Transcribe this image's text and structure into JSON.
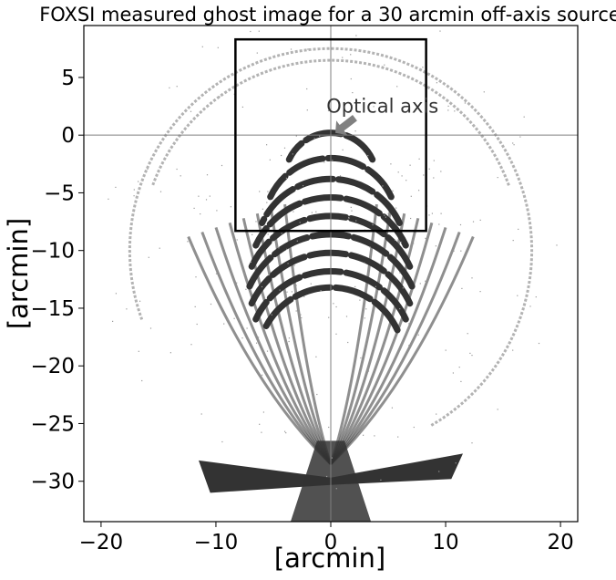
{
  "chart_data": {
    "type": "scatter",
    "title": "FOXSI measured ghost image for a 30 arcmin off-axis source",
    "xlabel": "[arcmin]",
    "ylabel": "[arcmin]",
    "xlim": [
      -21.5,
      21.5
    ],
    "ylim": [
      -33.5,
      9.5
    ],
    "x_ticks": [
      -20,
      -10,
      0,
      10,
      20
    ],
    "y_ticks": [
      5,
      0,
      -5,
      -10,
      -15,
      -20,
      -25,
      -30
    ],
    "x_tick_labels": [
      "−20",
      "−10",
      "0",
      "10",
      "20"
    ],
    "y_tick_labels": [
      "5",
      "0",
      "−5",
      "−10",
      "−15",
      "−20",
      "−25",
      "−30"
    ],
    "crosshair": {
      "x": 0,
      "y": 0
    },
    "box": {
      "x": [
        -8.3,
        8.3
      ],
      "y": [
        -8.3,
        8.3
      ]
    },
    "annotation": {
      "text": "Optical axis",
      "text_x": 4.5,
      "text_y": 2.5,
      "arrow_from": [
        2.1,
        1.5
      ],
      "arrow_to": [
        0.4,
        0.2
      ]
    },
    "ring_center": [
      0,
      -10
    ],
    "outer_rings": [
      {
        "r": 16.5,
        "start": 20,
        "end": 160
      },
      {
        "r": 17.5,
        "start": -60,
        "end": 200
      }
    ],
    "bright_arcs": [
      {
        "cy": -1.0,
        "r": 4
      },
      {
        "cy": -3.2,
        "r": 5.8
      },
      {
        "cy": -5.0,
        "r": 6.6
      },
      {
        "cy": -6.6,
        "r": 7.2
      },
      {
        "cy": -8.2,
        "r": 7.6
      },
      {
        "cy": -9.8,
        "r": 7.8
      },
      {
        "cy": -11.4,
        "r": 7.6
      },
      {
        "cy": -13.0,
        "r": 7.2
      },
      {
        "cy": -14.4,
        "r": 6.4
      }
    ],
    "grid": false,
    "colors": {
      "marks": "#333333",
      "light": "#9a9a9a",
      "arrow": "#808080",
      "axis": "#000000",
      "crosshair": "#7f7f7f"
    }
  }
}
